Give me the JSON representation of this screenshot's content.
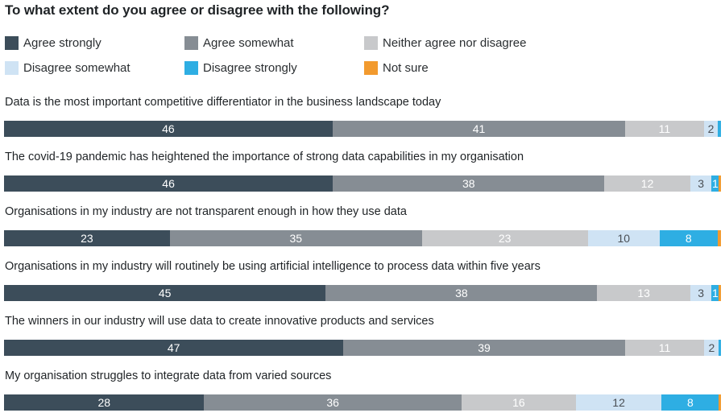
{
  "chart_data": {
    "type": "bar",
    "orientation": "horizontal",
    "stacked": true,
    "title": "To what extent do you agree or disagree with the following?",
    "series": [
      {
        "name": "Agree strongly",
        "color": "#3c4d5a",
        "label_color": "#ffffff"
      },
      {
        "name": "Agree somewhat",
        "color": "#868d94",
        "label_color": "#ffffff"
      },
      {
        "name": "Neither agree nor disagree",
        "color": "#c8c9cb",
        "label_color": "#ffffff"
      },
      {
        "name": "Disagree somewhat",
        "color": "#cfe3f4",
        "label_color": "#4a4f55"
      },
      {
        "name": "Disagree strongly",
        "color": "#2eaee3",
        "label_color": "#ffffff"
      },
      {
        "name": "Not sure",
        "color": "#f29a2e",
        "label_color": "#ffffff"
      }
    ],
    "categories": [
      "Data is the most important competitive differentiator in the business landscape today",
      "The covid-19 pandemic has heightened the importance of strong data capabilities in my organisation",
      "Organisations in my industry are not transparent enough in how they use data",
      "Organisations in my industry will routinely be using artificial intelligence to process data within five years",
      "The winners in our industry will use data to create innovative products and services",
      "My organisation struggles to integrate data from varied sources"
    ],
    "values": [
      [
        46,
        41,
        11,
        2,
        0.4,
        0
      ],
      [
        46,
        38,
        12,
        3,
        1,
        0.3
      ],
      [
        23,
        35,
        23,
        10,
        8,
        0.5
      ],
      [
        45,
        38,
        13,
        3,
        1,
        0.3
      ],
      [
        47,
        39,
        11,
        2,
        0.3,
        0
      ],
      [
        28,
        36,
        16,
        12,
        8,
        0.3
      ]
    ],
    "data_labels": [
      [
        "46",
        "41",
        "11",
        "2",
        "",
        ""
      ],
      [
        "46",
        "38",
        "12",
        "3",
        "1",
        ""
      ],
      [
        "23",
        "35",
        "23",
        "10",
        "8",
        ""
      ],
      [
        "45",
        "38",
        "13",
        "3",
        "1",
        ""
      ],
      [
        "47",
        "39",
        "11",
        "2",
        "",
        ""
      ],
      [
        "28",
        "36",
        "16",
        "12",
        "8",
        ""
      ]
    ]
  }
}
